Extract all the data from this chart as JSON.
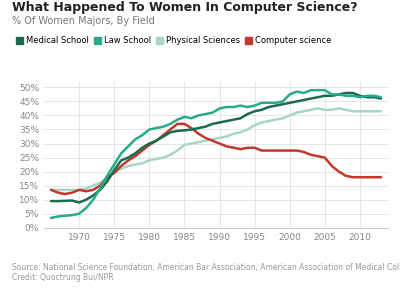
{
  "title": "What Happened To Women In Computer Science?",
  "subtitle": "% Of Women Majors, By Field",
  "source": "Source: National Science Foundation, American Bar Association, American Association of Medical Colleges\nCredit: Quoctrung Bui/NPR",
  "legend_labels": [
    "Medical School",
    "Law School",
    "Physical Sciences",
    "Computer science"
  ],
  "colors": {
    "medical": "#1a6b52",
    "law": "#2aaa8a",
    "physical": "#a8d5c8",
    "cs": "#c0392b"
  },
  "medical_x": [
    1966,
    1967,
    1968,
    1969,
    1970,
    1971,
    1972,
    1973,
    1974,
    1975,
    1976,
    1977,
    1978,
    1979,
    1980,
    1981,
    1982,
    1983,
    1984,
    1985,
    1986,
    1987,
    1988,
    1989,
    1990,
    1991,
    1992,
    1993,
    1994,
    1995,
    1996,
    1997,
    1998,
    1999,
    2000,
    2001,
    2002,
    2003,
    2004,
    2005,
    2006,
    2007,
    2008,
    2009,
    2010,
    2011,
    2012,
    2013
  ],
  "medical_y": [
    9.5,
    9.5,
    9.6,
    9.7,
    9.0,
    10.0,
    11.5,
    13.5,
    16.5,
    20.5,
    24.0,
    25.0,
    26.5,
    28.5,
    30.0,
    31.0,
    32.5,
    34.0,
    34.5,
    34.7,
    35.0,
    35.5,
    36.0,
    37.0,
    37.5,
    38.0,
    38.5,
    39.0,
    40.5,
    41.5,
    42.0,
    43.0,
    43.5,
    44.0,
    44.5,
    45.0,
    45.5,
    46.0,
    46.5,
    47.0,
    47.0,
    47.5,
    48.0,
    48.0,
    47.0,
    46.5,
    46.5,
    46.0
  ],
  "law_x": [
    1966,
    1967,
    1968,
    1969,
    1970,
    1971,
    1972,
    1973,
    1974,
    1975,
    1976,
    1977,
    1978,
    1979,
    1980,
    1981,
    1982,
    1983,
    1984,
    1985,
    1986,
    1987,
    1988,
    1989,
    1990,
    1991,
    1992,
    1993,
    1994,
    1995,
    1996,
    1997,
    1998,
    1999,
    2000,
    2001,
    2002,
    2003,
    2004,
    2005,
    2006,
    2007,
    2008,
    2009,
    2010,
    2011,
    2012,
    2013
  ],
  "law_y": [
    3.5,
    4.0,
    4.3,
    4.5,
    5.0,
    7.0,
    10.0,
    14.0,
    18.5,
    22.5,
    26.5,
    29.0,
    31.5,
    33.0,
    35.0,
    35.5,
    36.0,
    37.0,
    38.5,
    39.5,
    39.0,
    40.0,
    40.5,
    41.0,
    42.5,
    43.0,
    43.0,
    43.5,
    43.0,
    43.5,
    44.5,
    44.5,
    44.5,
    45.0,
    47.5,
    48.5,
    48.0,
    49.0,
    49.0,
    49.0,
    47.5,
    47.5,
    47.0,
    47.0,
    46.5,
    47.0,
    47.0,
    46.5
  ],
  "physical_x": [
    1966,
    1967,
    1968,
    1969,
    1970,
    1971,
    1972,
    1973,
    1974,
    1975,
    1976,
    1977,
    1978,
    1979,
    1980,
    1981,
    1982,
    1983,
    1984,
    1985,
    1986,
    1987,
    1988,
    1989,
    1990,
    1991,
    1992,
    1993,
    1994,
    1995,
    1996,
    1997,
    1998,
    1999,
    2000,
    2001,
    2002,
    2003,
    2004,
    2005,
    2006,
    2007,
    2008,
    2009,
    2010,
    2011,
    2012,
    2013
  ],
  "physical_y": [
    13.5,
    13.5,
    13.5,
    13.5,
    13.5,
    14.0,
    15.0,
    16.0,
    17.5,
    20.0,
    21.0,
    22.0,
    22.5,
    23.0,
    24.0,
    24.5,
    25.0,
    26.0,
    27.5,
    29.5,
    30.0,
    30.5,
    31.0,
    31.5,
    32.0,
    32.5,
    33.5,
    34.0,
    35.0,
    36.5,
    37.5,
    38.0,
    38.5,
    39.0,
    40.0,
    41.0,
    41.5,
    42.0,
    42.5,
    42.0,
    42.0,
    42.5,
    42.0,
    41.5,
    41.5,
    41.5,
    41.5,
    41.5
  ],
  "cs_x": [
    1966,
    1967,
    1968,
    1969,
    1970,
    1971,
    1972,
    1973,
    1974,
    1975,
    1976,
    1977,
    1978,
    1979,
    1980,
    1981,
    1982,
    1983,
    1984,
    1985,
    1986,
    1987,
    1988,
    1989,
    1990,
    1991,
    1992,
    1993,
    1994,
    1995,
    1996,
    1997,
    1998,
    1999,
    2000,
    2001,
    2002,
    2003,
    2004,
    2005,
    2006,
    2007,
    2008,
    2009,
    2010,
    2011,
    2012,
    2013
  ],
  "cs_y": [
    13.5,
    12.5,
    12.0,
    12.5,
    13.5,
    13.0,
    13.5,
    15.0,
    18.0,
    19.5,
    22.0,
    24.0,
    25.5,
    27.5,
    29.5,
    31.0,
    33.0,
    35.0,
    37.0,
    37.0,
    35.5,
    33.5,
    32.0,
    31.0,
    30.0,
    29.0,
    28.5,
    28.0,
    28.5,
    28.5,
    27.5,
    27.5,
    27.5,
    27.5,
    27.5,
    27.5,
    27.0,
    26.0,
    25.5,
    25.0,
    22.0,
    20.0,
    18.5,
    18.0,
    18.0,
    18.0,
    18.0,
    18.0
  ],
  "xlim": [
    1965,
    2014
  ],
  "ylim": [
    0,
    52
  ],
  "yticks": [
    0,
    5,
    10,
    15,
    20,
    25,
    30,
    35,
    40,
    45,
    50
  ],
  "xticks": [
    1970,
    1975,
    1980,
    1985,
    1990,
    1995,
    2000,
    2005,
    2010
  ],
  "bg_color": "#ffffff",
  "grid_color": "#e0e0e0",
  "line_width": 1.8
}
